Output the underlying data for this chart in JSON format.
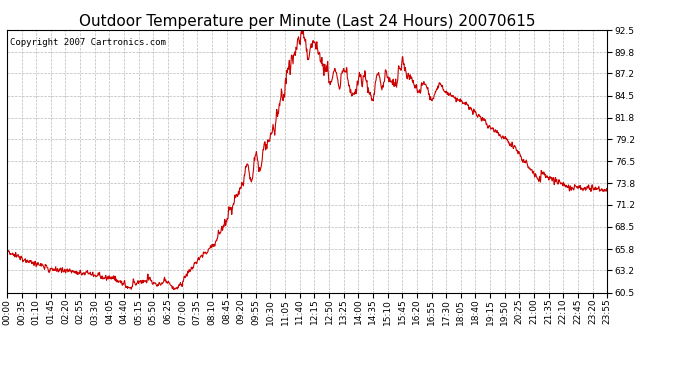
{
  "title": "Outdoor Temperature per Minute (Last 24 Hours) 20070615",
  "copyright_text": "Copyright 2007 Cartronics.com",
  "line_color": "#cc0000",
  "background_color": "#ffffff",
  "plot_background": "#ffffff",
  "grid_color": "#aaaaaa",
  "ylim": [
    60.5,
    92.5
  ],
  "yticks": [
    60.5,
    63.2,
    65.8,
    68.5,
    71.2,
    73.8,
    76.5,
    79.2,
    81.8,
    84.5,
    87.2,
    89.8,
    92.5
  ],
  "xtick_labels": [
    "00:00",
    "00:35",
    "01:10",
    "01:45",
    "02:20",
    "02:55",
    "03:30",
    "04:05",
    "04:40",
    "05:15",
    "05:50",
    "06:25",
    "07:00",
    "07:35",
    "08:10",
    "08:45",
    "09:20",
    "09:55",
    "10:30",
    "11:05",
    "11:40",
    "12:15",
    "12:50",
    "13:25",
    "14:00",
    "14:35",
    "15:10",
    "15:45",
    "16:20",
    "16:55",
    "17:30",
    "18:05",
    "18:40",
    "19:15",
    "19:50",
    "20:25",
    "21:00",
    "21:35",
    "22:10",
    "22:45",
    "23:20",
    "23:55"
  ],
  "title_fontsize": 11,
  "tick_fontsize": 6.5,
  "copyright_fontsize": 6.5,
  "line_width": 0.8
}
